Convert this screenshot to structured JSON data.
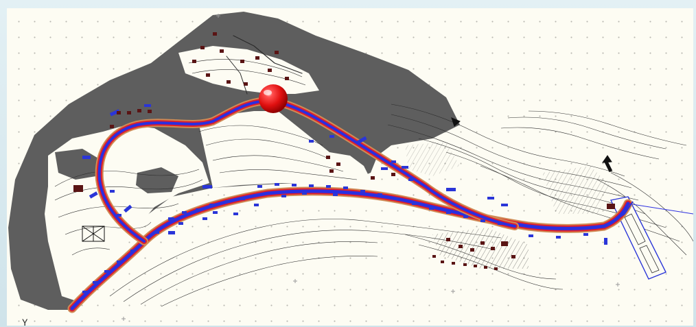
{
  "viewport": {
    "background": "#fdfcf3"
  },
  "ucs": {
    "label": "Y"
  },
  "colors": {
    "terrain_fill": "#5e5e5e",
    "contour_line": "#2b2b2b",
    "road_primary": "#2b2ee0",
    "road_outline": "#e0202a",
    "road_edge": "#cf8a55",
    "building": "#5a1414",
    "marker_blue": "#2a35d8",
    "location_marker": "#e21414",
    "grid_dot": "#b9b8b0"
  },
  "icons": {
    "location_marker": "red-sphere-icon",
    "north_arrow": "north-arrow-icon"
  },
  "layers": [
    "terrain",
    "contours",
    "road",
    "buildings",
    "annotations"
  ]
}
